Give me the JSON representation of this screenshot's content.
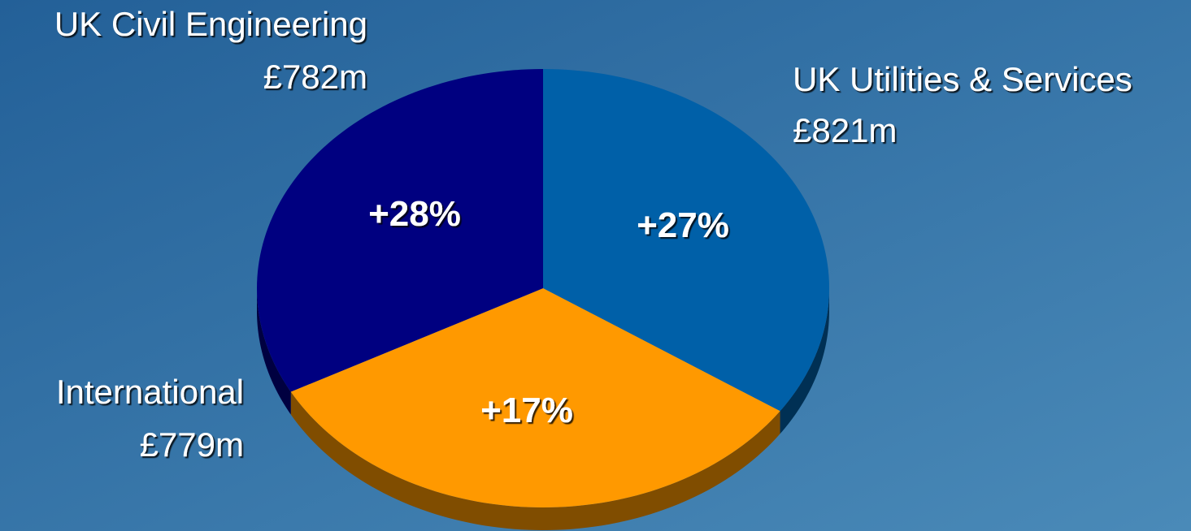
{
  "chart_data": {
    "type": "pie",
    "categories": [
      "UK Utilities & Services",
      "International",
      "UK Civil Engineering"
    ],
    "values": [
      821,
      779,
      782
    ],
    "value_labels": [
      "£821m",
      "£779m",
      "£782m"
    ],
    "annotations": [
      "+27%",
      "+17%",
      "+28%"
    ],
    "colors": [
      "#0060a8",
      "#ff9900",
      "#000080"
    ]
  }
}
